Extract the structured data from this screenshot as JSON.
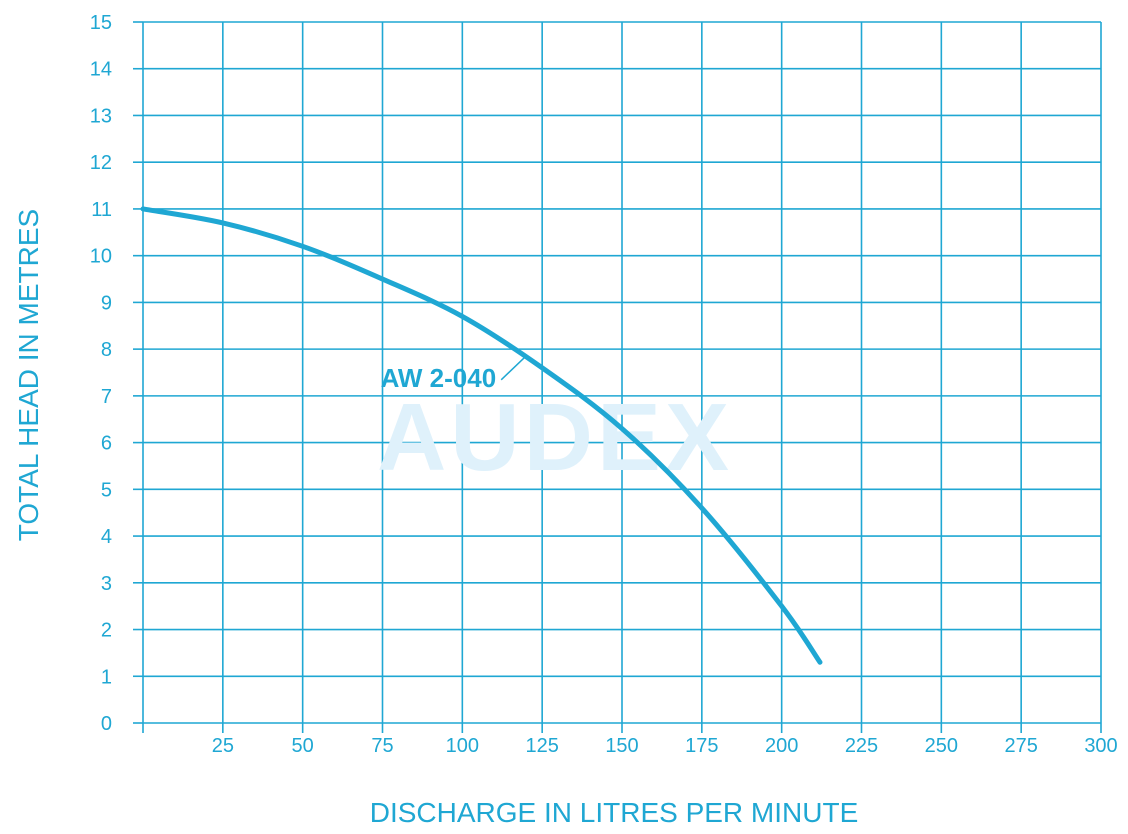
{
  "chart_data": {
    "type": "line",
    "title": "",
    "xlabel": "DISCHARGE IN LITRES PER MINUTE",
    "ylabel": "TOTAL HEAD IN METRES",
    "xlim": [
      0,
      300
    ],
    "ylim": [
      0,
      15
    ],
    "x_ticks": [
      25,
      50,
      75,
      100,
      125,
      150,
      175,
      200,
      225,
      250,
      275,
      300
    ],
    "y_ticks": [
      0,
      1,
      2,
      3,
      4,
      5,
      6,
      7,
      8,
      9,
      10,
      11,
      12,
      13,
      14,
      15
    ],
    "grid": true,
    "series": [
      {
        "name": "AW 2-040",
        "x": [
          0,
          25,
          50,
          75,
          100,
          125,
          150,
          175,
          200,
          212
        ],
        "y": [
          11.0,
          10.7,
          10.2,
          9.5,
          8.7,
          7.6,
          6.3,
          4.6,
          2.5,
          1.3
        ]
      }
    ],
    "annotations": [
      {
        "text": "AW 2-040",
        "x": 120,
        "y": 7.9
      }
    ],
    "watermark": "AUDEX"
  },
  "colors": {
    "accent": "#1fa7d3",
    "watermark": "#dff1fb"
  }
}
